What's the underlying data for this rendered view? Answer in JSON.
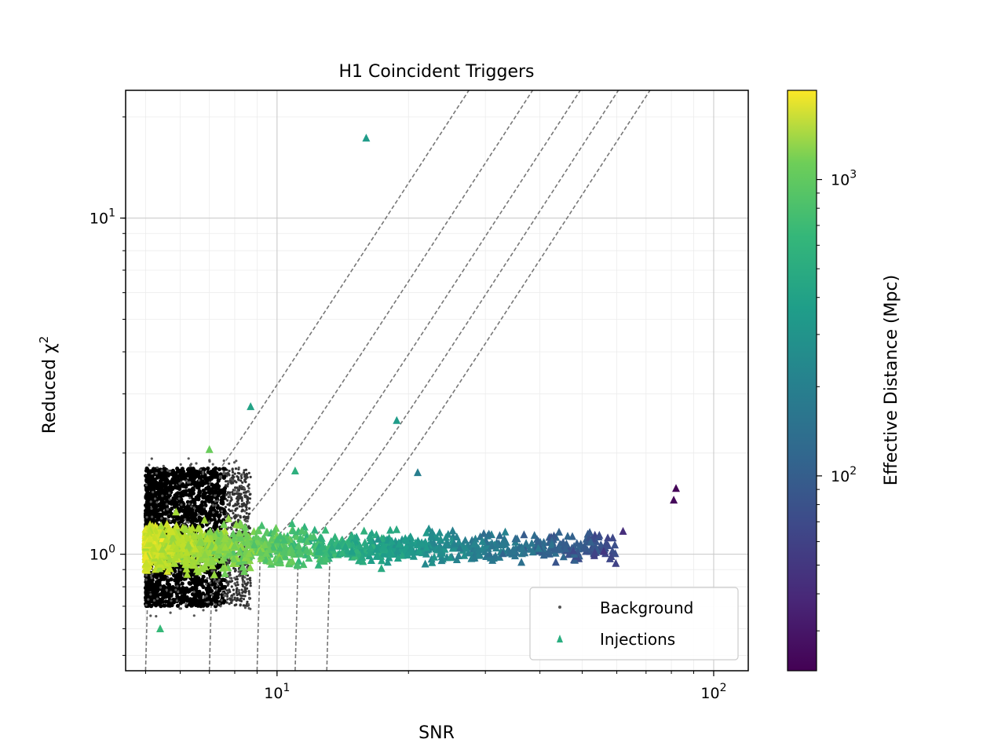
{
  "chart_data": {
    "type": "scatter",
    "title": "H1 Coincident Triggers",
    "xlabel": "SNR",
    "ylabel": "Reduced χ",
    "ylabel_superscript": "2",
    "xscale": "log",
    "yscale": "log",
    "xlim": [
      4.5,
      120
    ],
    "ylim": [
      0.45,
      24
    ],
    "grid": true,
    "x_ticks": [
      {
        "value": 10,
        "label": "10",
        "exp": "1"
      },
      {
        "value": 100,
        "label": "10",
        "exp": "2"
      }
    ],
    "y_ticks": [
      {
        "value": 1,
        "label": "10",
        "exp": "0"
      },
      {
        "value": 10,
        "label": "10",
        "exp": "1"
      }
    ],
    "legend": {
      "placement": "lower-right",
      "entries": [
        {
          "label": "Background",
          "marker": "dot",
          "color": "#555555"
        },
        {
          "label": "Injections",
          "marker": "triangle",
          "color": "#2aae80"
        }
      ]
    },
    "colorbar": {
      "label": "Effective Distance (Mpc)",
      "scale": "log",
      "range": [
        22,
        2000
      ],
      "colormap": "viridis",
      "ticks": [
        {
          "value": 100,
          "label": "10",
          "exp": "2"
        },
        {
          "value": 1000,
          "label": "10",
          "exp": "3"
        }
      ]
    },
    "threshold_curves": [
      {
        "snr_threshold": 5.0
      },
      {
        "snr_threshold": 7.0
      },
      {
        "snr_threshold": 9.0
      },
      {
        "snr_threshold": 11.0
      },
      {
        "snr_threshold": 13.0
      }
    ],
    "background": {
      "name": "Background",
      "snr_range": [
        5.0,
        8.7
      ],
      "chisq_range": [
        0.7,
        1.8
      ],
      "color": "#000000"
    },
    "injections_notable": [
      {
        "snr": 16.0,
        "chisq": 17.3,
        "distance": 260
      },
      {
        "snr": 8.7,
        "chisq": 2.75,
        "distance": 300
      },
      {
        "snr": 18.8,
        "chisq": 2.5,
        "distance": 260
      },
      {
        "snr": 7.0,
        "chisq": 2.05,
        "distance": 700
      },
      {
        "snr": 82.0,
        "chisq": 1.57,
        "distance": 23
      },
      {
        "snr": 81.0,
        "chisq": 1.45,
        "distance": 24
      },
      {
        "snr": 11.0,
        "chisq": 1.77,
        "distance": 380
      },
      {
        "snr": 21.0,
        "chisq": 1.75,
        "distance": 150
      },
      {
        "snr": 5.4,
        "chisq": 0.6,
        "distance": 450
      },
      {
        "snr": 62.0,
        "chisq": 1.17,
        "distance": 40
      },
      {
        "snr": 56.0,
        "chisq": 1.02,
        "distance": 45
      }
    ],
    "injections_bulk": {
      "name": "Injections",
      "snr_range": [
        5.0,
        60.0
      ],
      "chisq_center": 1.05,
      "distance_trend": "decreasing with SNR (about 1000 Mpc at SNR 5 to about 40 Mpc at SNR 60)"
    }
  }
}
